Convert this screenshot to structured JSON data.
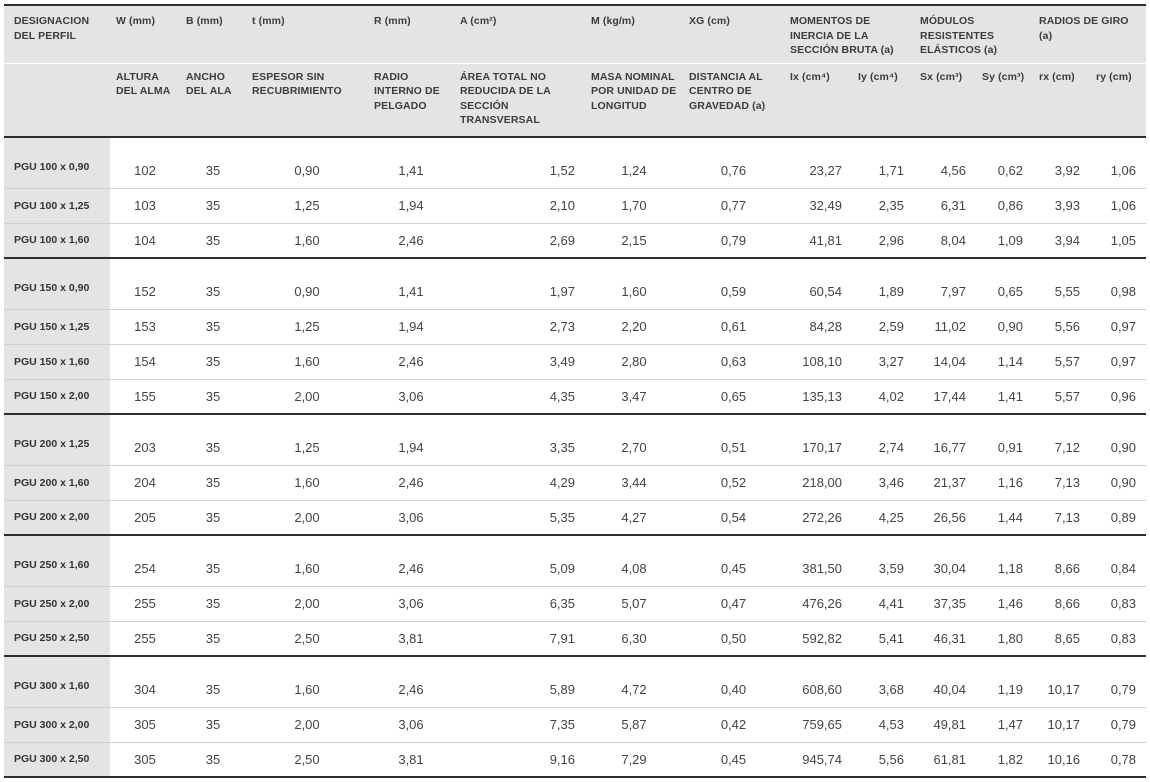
{
  "header": {
    "groups": {
      "designacion": "DESIGNACION DEL PERFIL",
      "w": "W (mm)",
      "b": "B (mm)",
      "t": "t (mm)",
      "r": "R (mm)",
      "a": "A (cm²)",
      "m": "M (kg/m)",
      "xg": "XG (cm)",
      "momentos": "MOMENTOS DE INERCIA DE LA SECCIÓN BRUTA (a)",
      "modulos": "MÓDULOS RESISTENTES ELÁSTICOS (a)",
      "radios": "RADIOS DE GIRO (a)"
    },
    "sub": {
      "w": "ALTURA DEL ALMA",
      "b": "ANCHO DEL ALA",
      "t": "ESPESOR SIN RECUBRIMIENTO",
      "r": "RADIO INTERNO DE PELGADO",
      "a": "ÁREA TOTAL NO REDUCIDA DE LA SECCIÓN TRANSVERSAL",
      "m": "MASA NOMINAL POR UNIDAD DE LONGITUD",
      "xg": "DISTANCIA AL CENTRO DE GRAVEDAD (a)",
      "ix": "Ix (cm⁴)",
      "iy": "Iy (cm⁴)",
      "sx": "Sx (cm³)",
      "sy": "Sy (cm³)",
      "rx": "rx (cm)",
      "ry": "ry (cm)"
    }
  },
  "groups": [
    [
      [
        "PGU 100 x 0,90",
        "102",
        "35",
        "0,90",
        "1,41",
        "1,52",
        "1,24",
        "0,76",
        "23,27",
        "1,71",
        "4,56",
        "0,62",
        "3,92",
        "1,06"
      ],
      [
        "PGU 100 x 1,25",
        "103",
        "35",
        "1,25",
        "1,94",
        "2,10",
        "1,70",
        "0,77",
        "32,49",
        "2,35",
        "6,31",
        "0,86",
        "3,93",
        "1,06"
      ],
      [
        "PGU 100 x 1,60",
        "104",
        "35",
        "1,60",
        "2,46",
        "2,69",
        "2,15",
        "0,79",
        "41,81",
        "2,96",
        "8,04",
        "1,09",
        "3,94",
        "1,05"
      ]
    ],
    [
      [
        "PGU 150 x 0,90",
        "152",
        "35",
        "0,90",
        "1,41",
        "1,97",
        "1,60",
        "0,59",
        "60,54",
        "1,89",
        "7,97",
        "0,65",
        "5,55",
        "0,98"
      ],
      [
        "PGU 150 x 1,25",
        "153",
        "35",
        "1,25",
        "1,94",
        "2,73",
        "2,20",
        "0,61",
        "84,28",
        "2,59",
        "11,02",
        "0,90",
        "5,56",
        "0,97"
      ],
      [
        "PGU 150 x 1,60",
        "154",
        "35",
        "1,60",
        "2,46",
        "3,49",
        "2,80",
        "0,63",
        "108,10",
        "3,27",
        "14,04",
        "1,14",
        "5,57",
        "0,97"
      ],
      [
        "PGU 150 x 2,00",
        "155",
        "35",
        "2,00",
        "3,06",
        "4,35",
        "3,47",
        "0,65",
        "135,13",
        "4,02",
        "17,44",
        "1,41",
        "5,57",
        "0,96"
      ]
    ],
    [
      [
        "PGU 200 x 1,25",
        "203",
        "35",
        "1,25",
        "1,94",
        "3,35",
        "2,70",
        "0,51",
        "170,17",
        "2,74",
        "16,77",
        "0,91",
        "7,12",
        "0,90"
      ],
      [
        "PGU 200 x 1,60",
        "204",
        "35",
        "1,60",
        "2,46",
        "4,29",
        "3,44",
        "0,52",
        "218,00",
        "3,46",
        "21,37",
        "1,16",
        "7,13",
        "0,90"
      ],
      [
        "PGU 200 x 2,00",
        "205",
        "35",
        "2,00",
        "3,06",
        "5,35",
        "4,27",
        "0,54",
        "272,26",
        "4,25",
        "26,56",
        "1,44",
        "7,13",
        "0,89"
      ]
    ],
    [
      [
        "PGU 250 x 1,60",
        "254",
        "35",
        "1,60",
        "2,46",
        "5,09",
        "4,08",
        "0,45",
        "381,50",
        "3,59",
        "30,04",
        "1,18",
        "8,66",
        "0,84"
      ],
      [
        "PGU 250 x 2,00",
        "255",
        "35",
        "2,00",
        "3,06",
        "6,35",
        "5,07",
        "0,47",
        "476,26",
        "4,41",
        "37,35",
        "1,46",
        "8,66",
        "0,83"
      ],
      [
        "PGU 250 x 2,50",
        "255",
        "35",
        "2,50",
        "3,81",
        "7,91",
        "6,30",
        "0,50",
        "592,82",
        "5,41",
        "46,31",
        "1,80",
        "8,65",
        "0,83"
      ]
    ],
    [
      [
        "PGU 300 x 1,60",
        "304",
        "35",
        "1,60",
        "2,46",
        "5,89",
        "4,72",
        "0,40",
        "608,60",
        "3,68",
        "40,04",
        "1,19",
        "10,17",
        "0,79"
      ],
      [
        "PGU 300 x 2,00",
        "305",
        "35",
        "2,00",
        "3,06",
        "7,35",
        "5,87",
        "0,42",
        "759,65",
        "4,53",
        "49,81",
        "1,47",
        "10,17",
        "0,79"
      ],
      [
        "PGU 300 x 2,50",
        "305",
        "35",
        "2,50",
        "3,81",
        "9,16",
        "7,29",
        "0,45",
        "945,74",
        "5,56",
        "61,81",
        "1,82",
        "10,16",
        "0,78"
      ]
    ]
  ]
}
